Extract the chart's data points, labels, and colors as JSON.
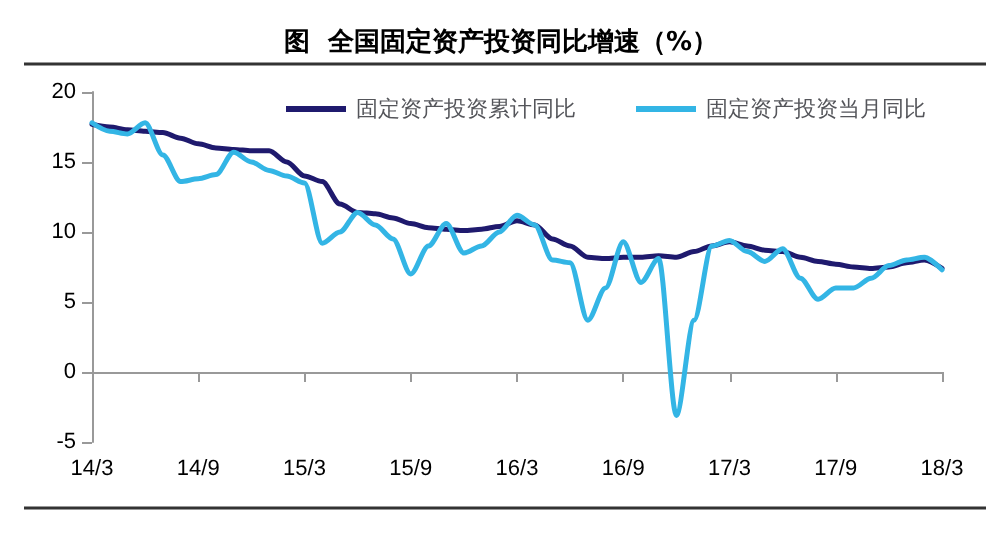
{
  "chart_data": {
    "type": "line",
    "title": "图  全国固定资产投资同比增速（%）",
    "categories": [
      "14/3",
      null,
      null,
      null,
      null,
      null,
      "14/9",
      null,
      null,
      null,
      null,
      null,
      "15/3",
      null,
      null,
      null,
      null,
      null,
      "15/9",
      null,
      null,
      null,
      null,
      null,
      "16/3",
      null,
      null,
      null,
      null,
      null,
      "16/9",
      null,
      null,
      null,
      null,
      null,
      "17/3",
      null,
      null,
      null,
      null,
      null,
      "17/9",
      null,
      null,
      null,
      null,
      null,
      "18/3"
    ],
    "series": [
      {
        "name": "固定资产投资累计同比",
        "color": "#1f1a6e",
        "values": [
          17.7,
          17.5,
          17.3,
          17.2,
          17.1,
          16.7,
          16.3,
          16.0,
          15.9,
          15.8,
          15.8,
          15.0,
          14.0,
          13.6,
          12.0,
          11.4,
          11.3,
          11.0,
          10.6,
          10.3,
          10.2,
          10.1,
          10.2,
          10.4,
          10.8,
          10.5,
          9.5,
          9.0,
          8.2,
          8.1,
          8.2,
          8.2,
          8.3,
          8.2,
          8.6,
          9.0,
          9.3,
          9.0,
          8.7,
          8.6,
          8.2,
          7.9,
          7.7,
          7.5,
          7.4,
          7.5,
          7.8,
          8.0,
          7.4
        ]
      },
      {
        "name": "固定资产投资当月同比",
        "color": "#33b5e5",
        "values": [
          17.8,
          17.2,
          17.0,
          17.8,
          15.5,
          13.6,
          13.8,
          14.1,
          15.7,
          15.0,
          14.4,
          14.0,
          13.5,
          9.2,
          10.0,
          11.4,
          10.5,
          9.5,
          7.0,
          9.0,
          10.6,
          8.5,
          9.0,
          10.0,
          11.2,
          10.5,
          8.0,
          7.8,
          3.7,
          6.0,
          9.3,
          6.4,
          8.1,
          -3.1,
          3.7,
          9.0,
          9.4,
          8.6,
          7.9,
          8.8,
          6.7,
          5.2,
          6.0,
          6.0,
          6.7,
          7.6,
          8.0,
          8.2,
          7.3
        ]
      }
    ],
    "ylim": [
      -5,
      20
    ],
    "yticks": [
      -5,
      0,
      5,
      10,
      15,
      20
    ],
    "legend": "top right",
    "marker": "none",
    "line_style": "solid"
  }
}
